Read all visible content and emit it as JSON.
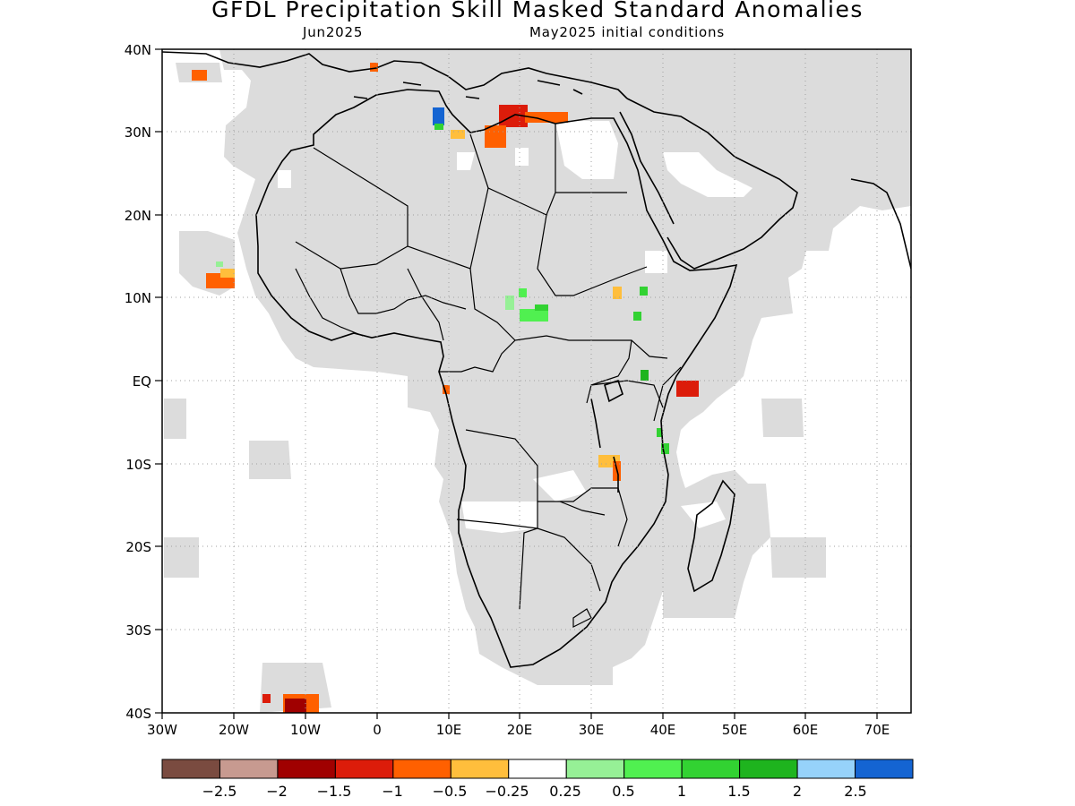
{
  "title": "GFDL Precipitation Skill Masked Standard Anomalies",
  "subtitle_left": "Jun2025",
  "subtitle_right": "May2025 initial conditions",
  "lat_labels": [
    "40N",
    "30N",
    "20N",
    "10N",
    "EQ",
    "10S",
    "20S",
    "30S",
    "40S"
  ],
  "lon_labels": [
    "30W",
    "20W",
    "10W",
    "0",
    "10E",
    "20E",
    "30E",
    "40E",
    "50E",
    "60E",
    "70E"
  ],
  "colors": {
    "skill_mask": "#dcdcdc",
    "ocean_land_skill": "#ffffff",
    "coastline": "#000000",
    "grid": "#a0a0a0"
  },
  "colorbar": {
    "swatches": [
      "#7a4b40",
      "#c79a90",
      "#a00000",
      "#dc1c0a",
      "#ff6000",
      "#ffbe3c",
      "#ffffff",
      "#96f096",
      "#50f050",
      "#32d232",
      "#1eb41e",
      "#96d2fa",
      "#1464d2"
    ],
    "labels": [
      "−2.5",
      "−2",
      "−1.5",
      "−1",
      "−0.5",
      "−0.25",
      "0.25",
      "0.5",
      "1",
      "1.5",
      "2",
      "2.5"
    ]
  }
}
